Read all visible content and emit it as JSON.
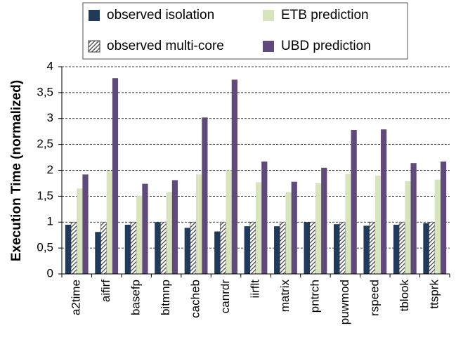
{
  "chart_data": {
    "type": "bar",
    "ylabel": "Execution Time (normalized)",
    "categories": [
      "a2time",
      "aifirf",
      "basefp",
      "bitmnp",
      "cacheb",
      "canrdr",
      "iirflt",
      "matrix",
      "pntrch",
      "puwmod",
      "rspeed",
      "tblook",
      "ttsprk"
    ],
    "series": [
      {
        "name": "observed isolation",
        "color": "#1f3a5a",
        "values": [
          0.95,
          0.81,
          0.95,
          1.0,
          0.89,
          0.82,
          0.92,
          0.92,
          1.0,
          0.96,
          0.93,
          0.95,
          0.98
        ]
      },
      {
        "name": "observed multi-core",
        "color": "#3a3a3a",
        "hatch": true,
        "values": [
          1.0,
          1.0,
          1.0,
          1.0,
          1.0,
          1.0,
          1.0,
          1.0,
          1.0,
          1.0,
          1.0,
          1.0,
          1.0
        ]
      },
      {
        "name": "ETB prediction",
        "color": "#d7e4bd",
        "values": [
          1.65,
          1.99,
          1.51,
          1.58,
          1.92,
          2.0,
          1.77,
          1.58,
          1.75,
          1.93,
          1.9,
          1.79,
          1.82
        ]
      },
      {
        "name": "UBD prediction",
        "color": "#604a7b",
        "values": [
          1.92,
          3.78,
          1.74,
          1.81,
          3.02,
          3.75,
          2.17,
          1.78,
          2.05,
          2.78,
          2.79,
          2.14,
          2.17
        ]
      }
    ],
    "ylim": [
      0,
      4
    ],
    "yticks": [
      0,
      {
        "value": 0.5,
        "label": "0,5"
      },
      1,
      {
        "value": 1.5,
        "label": "1,5"
      },
      2,
      {
        "value": 2.5,
        "label": "2,5"
      },
      3,
      {
        "value": 3.5,
        "label": "3,5"
      },
      4
    ],
    "grid": true
  }
}
